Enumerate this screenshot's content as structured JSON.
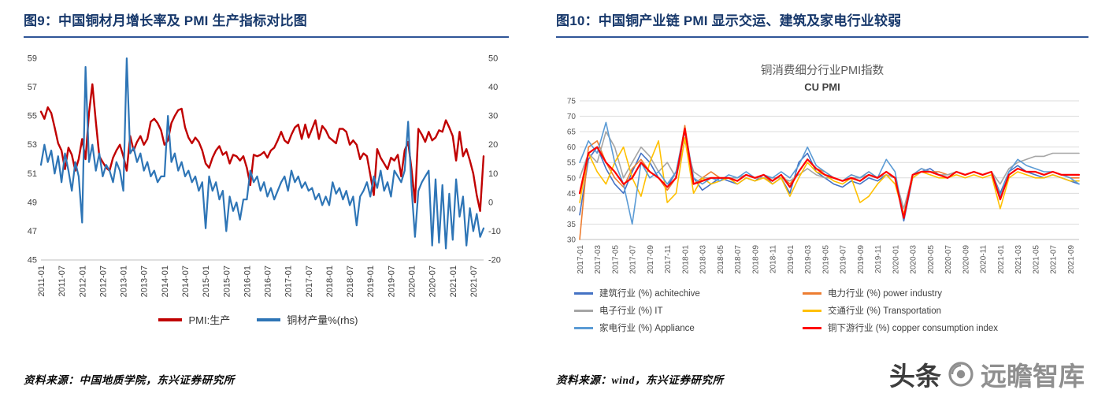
{
  "panels": {
    "left": {
      "title": "图9：中国铜材月增长率及 PMI 生产指标对比图",
      "source": "资料来源：中国地质学院，东兴证券研究所"
    },
    "right": {
      "title": "图10：中国铜产业链 PMI 显示交运、建筑及家电行业较弱",
      "chart_title": "铜消费细分行业PMI指数",
      "chart_subtitle": "CU PMI",
      "source": "资料来源：wind，东兴证券研究所"
    }
  },
  "watermark": {
    "brand": "头条",
    "handle": "远瞻智库"
  },
  "colors": {
    "title_navy": "#17386b",
    "rule_blue": "#2f5597",
    "pmi_red": "#C00000",
    "output_blue": "#2E75B6"
  },
  "chart_data": [
    {
      "type": "line",
      "title": "",
      "x_start": "2011-01",
      "x_points": 130,
      "x_tick_every": 6,
      "x_tick_labels": [
        "2011-01",
        "2011-07",
        "2012-01",
        "2012-07",
        "2013-01",
        "2013-07",
        "2014-01",
        "2014-07",
        "2015-01",
        "2015-07",
        "2016-01",
        "2016-07",
        "2017-01",
        "2017-07",
        "2018-01",
        "2018-07",
        "2019-01",
        "2019-07",
        "2020-01",
        "2020-07",
        "2021-01",
        "2021-07"
      ],
      "y_left": {
        "min": 45,
        "max": 59,
        "step": 2
      },
      "y_right": {
        "min": -20,
        "max": 50,
        "step": 10
      },
      "grid": false,
      "legend_position": "bottom",
      "series": [
        {
          "key": "pmi-production",
          "name": "PMI:生产",
          "axis": "left",
          "color": "#C00000",
          "width": 2.4,
          "values": [
            55.3,
            54.8,
            55.6,
            55.2,
            54.2,
            53.1,
            52.6,
            51.3,
            52.8,
            52.3,
            51.2,
            52.0,
            53.4,
            52.0,
            55.2,
            57.2,
            54.6,
            52.2,
            51.8,
            51.4,
            51.2,
            52.1,
            52.6,
            53.0,
            52.2,
            51.2,
            53.6,
            52.6,
            53.2,
            53.6,
            53.0,
            53.4,
            54.6,
            54.8,
            54.5,
            54.0,
            53.0,
            53.3,
            54.5,
            55.0,
            55.4,
            55.5,
            54.2,
            53.5,
            53.1,
            53.5,
            53.2,
            52.6,
            51.7,
            51.4,
            52.1,
            52.6,
            52.9,
            52.3,
            52.5,
            51.7,
            52.3,
            52.2,
            51.9,
            52.2,
            51.4,
            50.2,
            52.3,
            52.2,
            52.3,
            52.5,
            52.1,
            52.6,
            52.8,
            53.3,
            53.9,
            53.3,
            53.1,
            53.7,
            54.2,
            54.4,
            53.4,
            54.4,
            53.5,
            54.1,
            54.7,
            53.4,
            54.3,
            54.0,
            53.5,
            53.3,
            53.1,
            54.1,
            54.1,
            53.9,
            53.0,
            53.3,
            53.0,
            52.0,
            52.4,
            52.2,
            50.9,
            49.5,
            52.7,
            52.1,
            51.7,
            51.3,
            52.1,
            51.9,
            52.3,
            50.8,
            52.6,
            53.2,
            51.3,
            49.0,
            54.1,
            53.7,
            53.2,
            53.9,
            53.3,
            53.5,
            54.0,
            53.9,
            54.7,
            54.2,
            53.6,
            51.9,
            53.9,
            52.2,
            52.7,
            51.9,
            51.0,
            49.5,
            48.4,
            52.2
          ]
        },
        {
          "key": "copper-output",
          "name": "铜材产量%(rhs)",
          "axis": "right",
          "color": "#2E75B6",
          "width": 2.2,
          "values": [
            13,
            20,
            14,
            18,
            10,
            16,
            7,
            17,
            11,
            4,
            14,
            9,
            -7,
            47,
            14,
            20,
            11,
            17,
            9,
            13,
            11,
            7,
            14,
            11,
            4,
            50,
            17,
            19,
            14,
            17,
            11,
            14,
            9,
            11,
            7,
            9,
            9,
            30,
            14,
            17,
            11,
            14,
            9,
            11,
            7,
            9,
            4,
            7,
            -9,
            9,
            4,
            7,
            1,
            4,
            -10,
            2,
            -3,
            0,
            -6,
            1,
            1,
            11,
            7,
            9,
            4,
            7,
            2,
            5,
            1,
            4,
            7,
            9,
            4,
            11,
            7,
            9,
            5,
            7,
            4,
            5,
            1,
            3,
            -1,
            2,
            -1,
            7,
            3,
            5,
            1,
            4,
            -1,
            2,
            -8,
            2,
            4,
            7,
            2,
            9,
            5,
            11,
            4,
            7,
            2,
            11,
            9,
            7,
            11,
            28,
            5,
            -12,
            4,
            7,
            9,
            11,
            -15,
            8,
            -14,
            6,
            -16,
            3,
            -13,
            8,
            -5,
            2,
            -15,
            -2,
            -10,
            -4,
            -12,
            -9
          ]
        }
      ]
    },
    {
      "type": "line",
      "title": "铜消费细分行业PMI指数",
      "subtitle": "CU PMI",
      "x_start": "2017-01",
      "x_points": 58,
      "x_tick_every": 2,
      "x_tick_labels": [
        "2017-01",
        "2017-03",
        "2017-05",
        "2017-07",
        "2017-09",
        "2017-11",
        "2018-01",
        "2018-03",
        "2018-05",
        "2018-07",
        "2018-09",
        "2018-11",
        "2019-01",
        "2019-03",
        "2019-05",
        "2019-07",
        "2019-09",
        "2019-11",
        "2020-01",
        "2020-03",
        "2020-05",
        "2020-07",
        "2020-09",
        "2020-11",
        "2021-01",
        "2021-03",
        "2021-05",
        "2021-07",
        "2021-09"
      ],
      "y_left": {
        "min": 30,
        "max": 75,
        "step": 5
      },
      "grid": true,
      "legend_position": "bottom",
      "series": [
        {
          "key": "construction",
          "name": "建筑行业 (%) achitechive",
          "axis": "left",
          "color": "#4472C4",
          "width": 1.6,
          "values": [
            38,
            56,
            60,
            53,
            48,
            45,
            52,
            58,
            55,
            50,
            47,
            52,
            65,
            50,
            46,
            48,
            50,
            49,
            48,
            50,
            49,
            51,
            48,
            50,
            45,
            55,
            58,
            52,
            50,
            48,
            47,
            49,
            48,
            50,
            49,
            51,
            50,
            36,
            50,
            52,
            53,
            51,
            50,
            52,
            51,
            52,
            51,
            52,
            45,
            52,
            54,
            52,
            51,
            50,
            51,
            50,
            49,
            48
          ]
        },
        {
          "key": "power",
          "name": "电力行业 (%) power industry",
          "axis": "left",
          "color": "#ED7D31",
          "width": 1.6,
          "values": [
            30,
            60,
            62,
            55,
            50,
            47,
            53,
            56,
            52,
            50,
            46,
            50,
            67,
            48,
            50,
            52,
            50,
            50,
            49,
            51,
            50,
            50,
            49,
            51,
            48,
            52,
            56,
            53,
            52,
            50,
            49,
            51,
            50,
            52,
            50,
            52,
            50,
            38,
            51,
            53,
            52,
            52,
            51,
            52,
            51,
            52,
            51,
            52,
            44,
            51,
            53,
            52,
            52,
            51,
            52,
            51,
            50,
            50
          ]
        },
        {
          "key": "electronics",
          "name": "电子行业 (%) IT",
          "axis": "left",
          "color": "#A5A5A5",
          "width": 1.6,
          "values": [
            50,
            58,
            55,
            65,
            60,
            50,
            55,
            60,
            57,
            52,
            55,
            50,
            62,
            52,
            50,
            50,
            49,
            50,
            50,
            51,
            50,
            50,
            50,
            50,
            49,
            51,
            53,
            51,
            50,
            50,
            49,
            50,
            50,
            51,
            50,
            51,
            50,
            40,
            51,
            52,
            52,
            51,
            51,
            52,
            51,
            52,
            51,
            52,
            48,
            53,
            55,
            56,
            57,
            57,
            58,
            58,
            58,
            58
          ]
        },
        {
          "key": "transportation",
          "name": "交通行业 (%) Transportation",
          "axis": "left",
          "color": "#FFC000",
          "width": 1.6,
          "values": [
            42,
            58,
            52,
            48,
            55,
            60,
            50,
            44,
            55,
            62,
            42,
            45,
            63,
            45,
            50,
            48,
            49,
            50,
            48,
            50,
            49,
            50,
            48,
            50,
            44,
            50,
            55,
            52,
            51,
            49,
            48,
            50,
            42,
            44,
            48,
            51,
            48,
            38,
            50,
            52,
            51,
            50,
            50,
            51,
            50,
            51,
            50,
            51,
            40,
            50,
            52,
            51,
            50,
            50,
            51,
            50,
            49,
            49
          ]
        },
        {
          "key": "appliance",
          "name": "家电行业 (%) Appliance",
          "axis": "left",
          "color": "#5B9BD5",
          "width": 1.6,
          "values": [
            55,
            62,
            58,
            68,
            55,
            48,
            35,
            55,
            50,
            52,
            48,
            52,
            66,
            50,
            48,
            50,
            49,
            51,
            50,
            52,
            50,
            51,
            50,
            52,
            50,
            54,
            60,
            54,
            52,
            50,
            49,
            51,
            50,
            52,
            50,
            56,
            52,
            37,
            51,
            53,
            52,
            51,
            50,
            52,
            51,
            52,
            51,
            52,
            44,
            52,
            56,
            54,
            53,
            52,
            52,
            51,
            50,
            48
          ]
        },
        {
          "key": "copper-downstream",
          "name": "铜下游行业 (%) copper consumption index",
          "axis": "left",
          "color": "#FF0000",
          "width": 2.2,
          "values": [
            45,
            58,
            60,
            55,
            52,
            48,
            50,
            55,
            52,
            50,
            47,
            50,
            66,
            48,
            49,
            50,
            50,
            50,
            49,
            51,
            50,
            51,
            49,
            51,
            47,
            52,
            56,
            53,
            51,
            50,
            49,
            50,
            49,
            51,
            50,
            52,
            50,
            37,
            51,
            52,
            52,
            51,
            50,
            52,
            51,
            52,
            51,
            52,
            43,
            51,
            53,
            52,
            52,
            51,
            52,
            51,
            51,
            51
          ]
        }
      ]
    }
  ]
}
